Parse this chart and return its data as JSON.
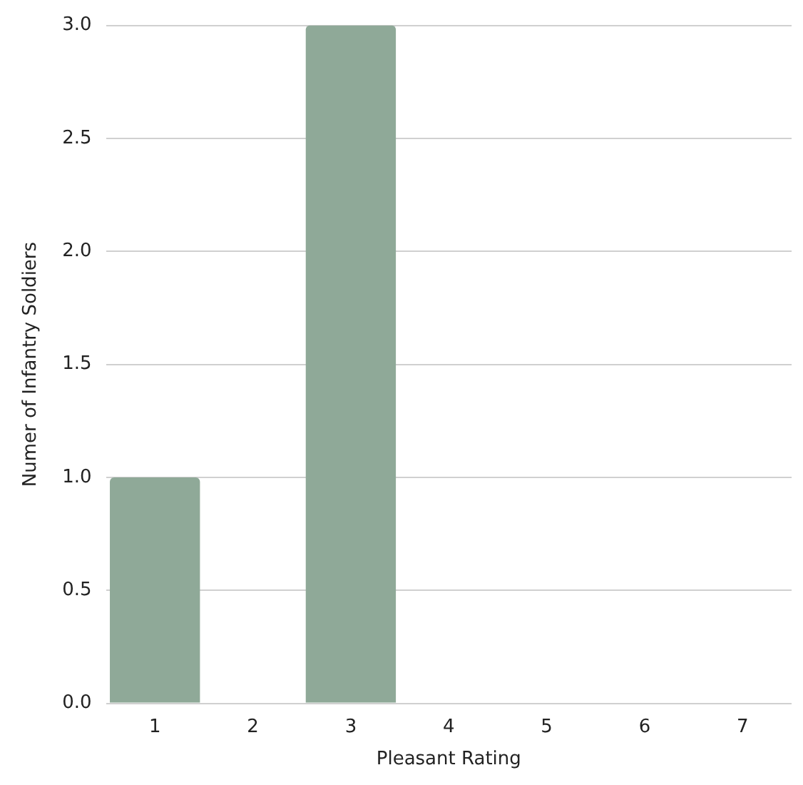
{
  "chart_data": {
    "type": "bar",
    "xlabel": "Pleasant Rating",
    "ylabel": "Numer of Infantry Soldiers",
    "categories": [
      "1",
      "2",
      "3",
      "4",
      "5",
      "6",
      "7"
    ],
    "values": [
      1,
      0,
      3,
      0,
      0,
      0,
      0
    ],
    "color": "#8fa998",
    "ylim": [
      0,
      3
    ],
    "yticks": [
      {
        "value": 0,
        "label": "0.0"
      },
      0.5,
      {
        "value": 1,
        "label": "1.0"
      },
      1.5,
      {
        "value": 2,
        "label": "2.0"
      },
      2.5,
      {
        "value": 3,
        "label": "3.0"
      }
    ],
    "grid": "y"
  }
}
